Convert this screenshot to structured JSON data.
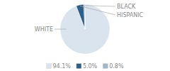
{
  "chart_data": {
    "type": "pie",
    "categories": [
      "WHITE",
      "HISPANIC",
      "BLACK"
    ],
    "values": [
      94.1,
      5.0,
      0.8
    ],
    "value_labels": [
      "94.1%",
      "5.0%",
      "0.8%"
    ],
    "colors": [
      "#d9e4ef",
      "#2e5f8a",
      "#9db8cc"
    ],
    "legend": "bottom"
  }
}
